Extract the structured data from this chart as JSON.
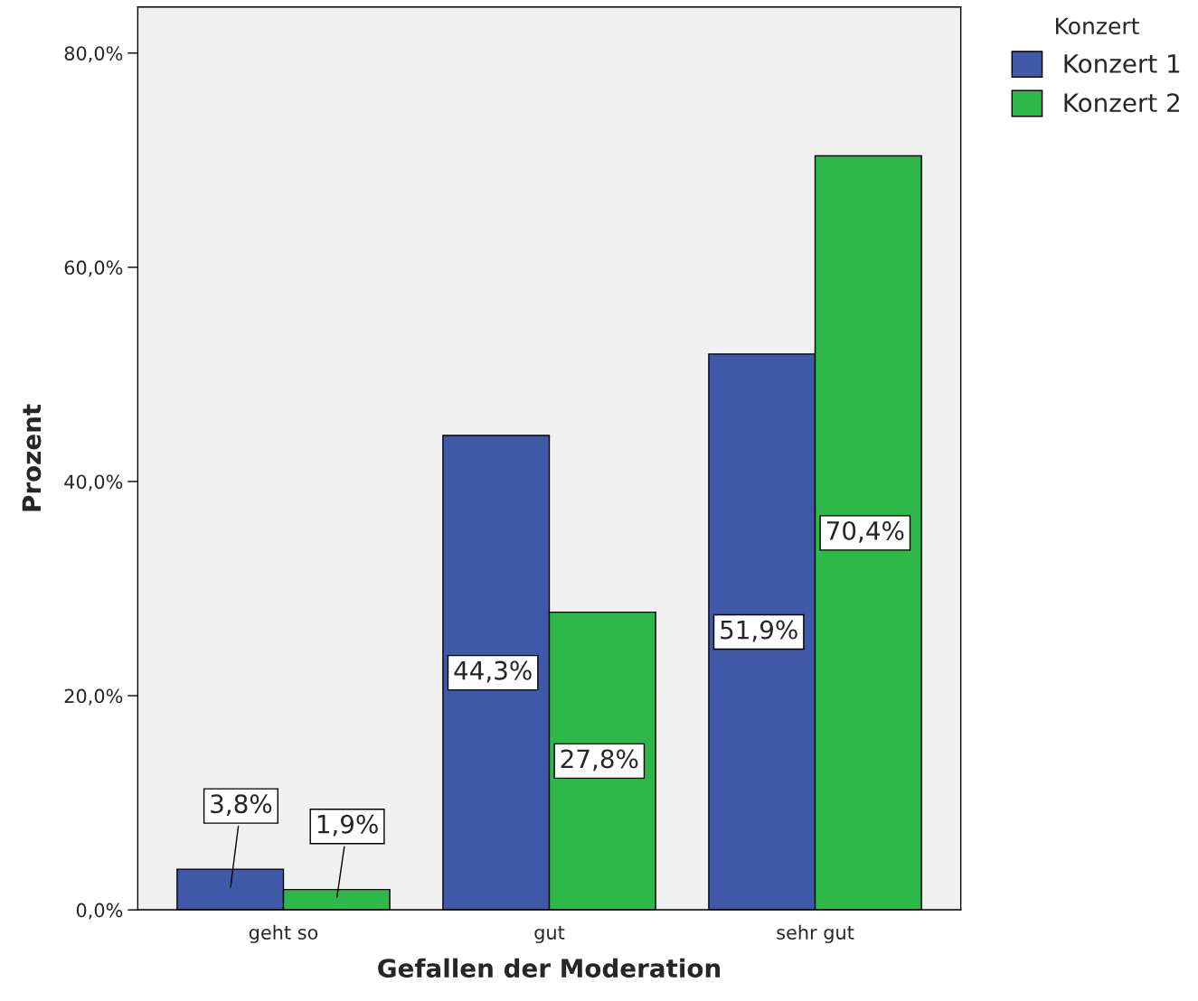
{
  "chart_data": {
    "type": "bar",
    "xlabel": "Gefallen der Moderation",
    "ylabel": "Prozent",
    "legend_title": "Konzert",
    "categories": [
      "geht so",
      "gut",
      "sehr gut"
    ],
    "series": [
      {
        "name": "Konzert 1",
        "color": "#3f58a8",
        "values": [
          3.8,
          44.3,
          51.9
        ],
        "value_labels": [
          "3,8%",
          "44,3%",
          "51,9%"
        ]
      },
      {
        "name": "Konzert 2",
        "color": "#2fb84a",
        "values": [
          1.9,
          27.8,
          70.4
        ],
        "value_labels": [
          "1,9%",
          "27,8%",
          "70,4%"
        ]
      }
    ],
    "ylim": [
      0,
      84.3
    ],
    "yticks": [
      {
        "value": 0,
        "label": "0,0%"
      },
      {
        "value": 20,
        "label": "20,0%"
      },
      {
        "value": 40,
        "label": "40,0%"
      },
      {
        "value": 60,
        "label": "60,0%"
      },
      {
        "value": 80,
        "label": "80,0%"
      }
    ],
    "grid": false,
    "legend": "top right"
  }
}
